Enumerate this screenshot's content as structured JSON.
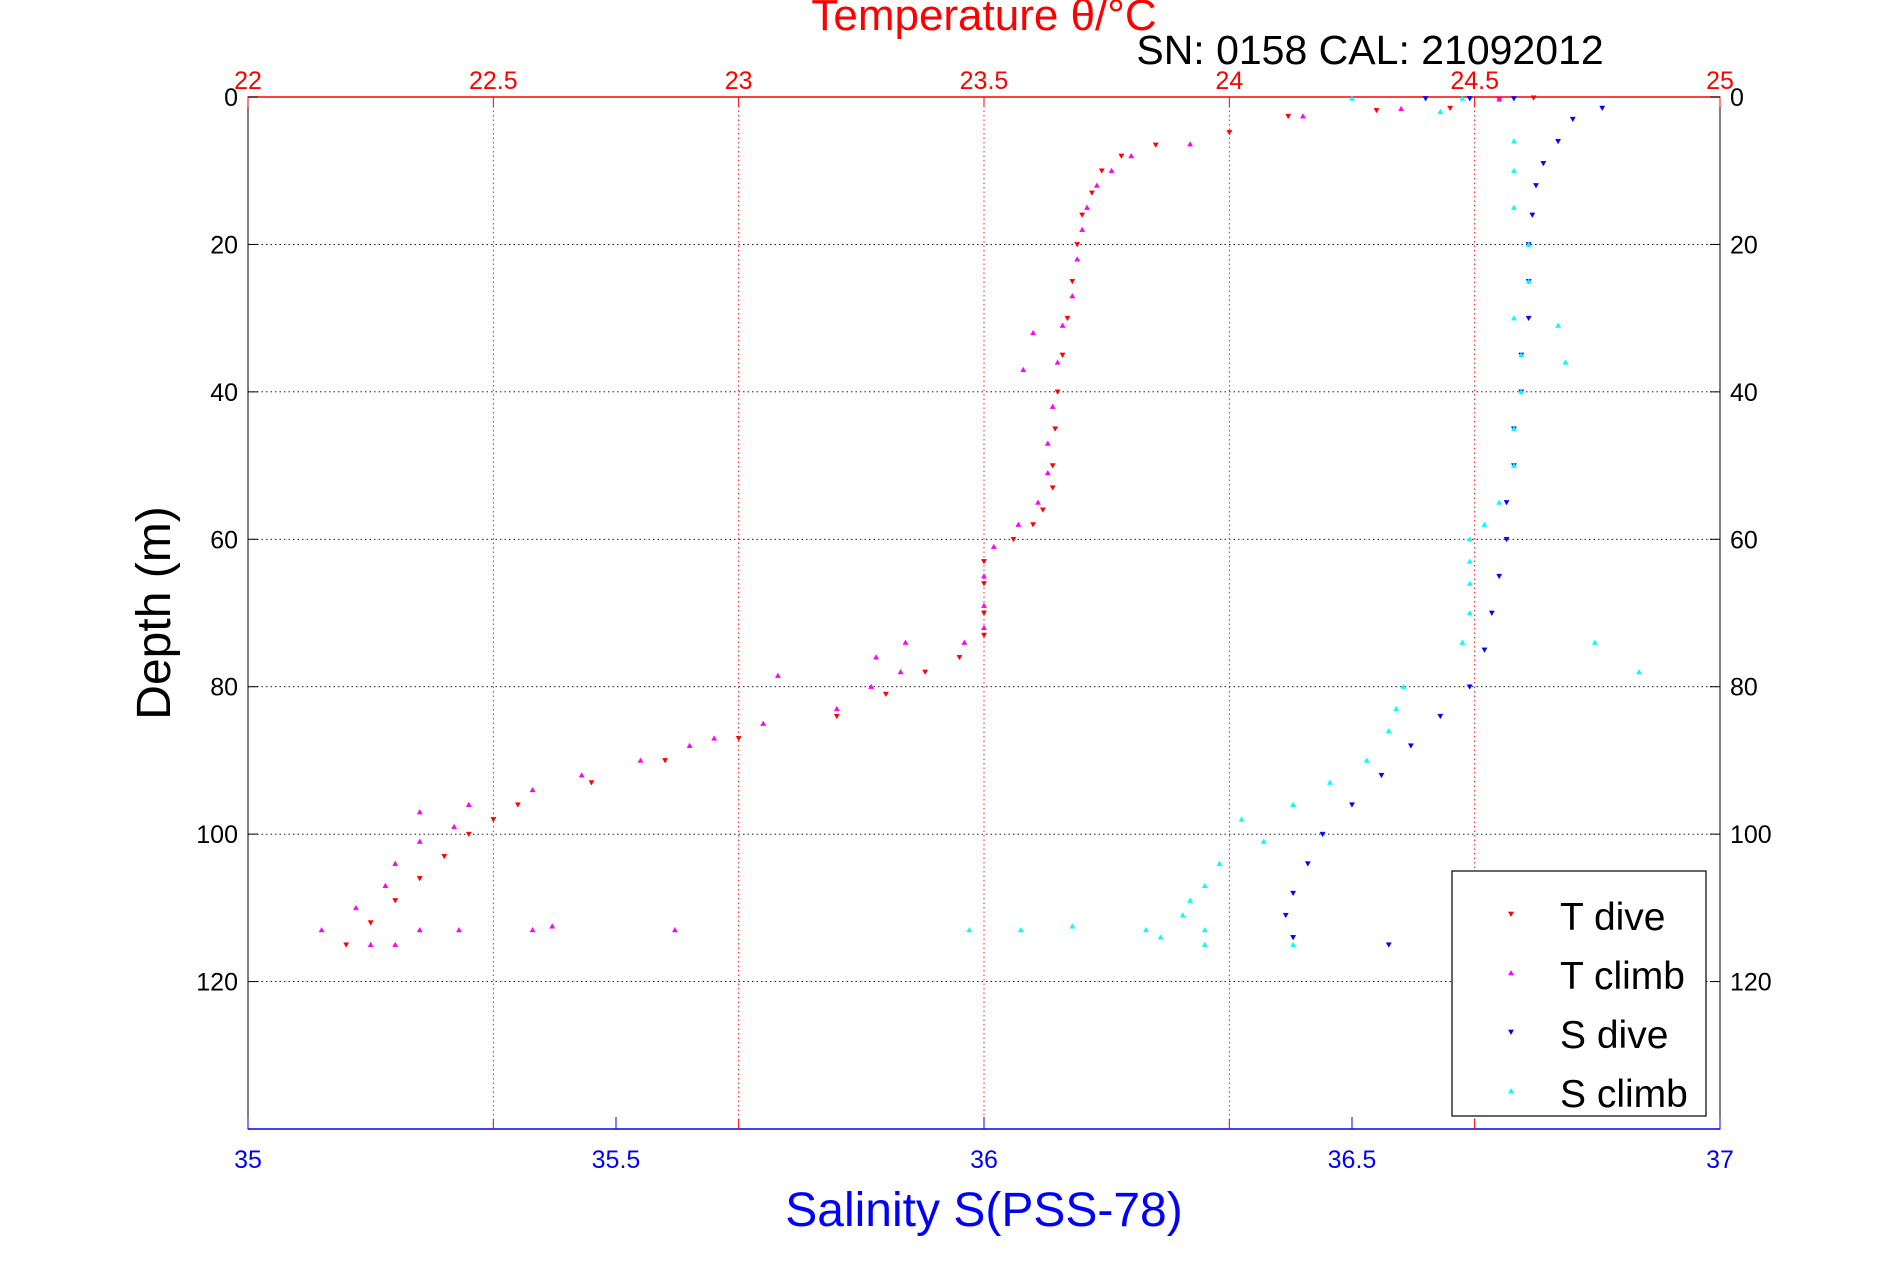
{
  "chart_data": {
    "type": "scatter",
    "title": "Temperature θ/°C",
    "subtitle": "SN: 0158  CAL: 21092012",
    "xlabel_top": "Temperature θ/°C",
    "xlabel_bottom": "Salinity S(PSS-78)",
    "ylabel": "Depth (m)",
    "y_reversed": true,
    "ylim": [
      0,
      140
    ],
    "yticks": [
      0,
      20,
      40,
      60,
      80,
      100,
      120
    ],
    "temperature_axis": {
      "xlim": [
        22,
        25
      ],
      "ticks": [
        "22",
        "22.5",
        "23",
        "23.5",
        "24",
        "24.5",
        "25"
      ],
      "color": "#ff0000",
      "grid": "dotted"
    },
    "salinity_axis": {
      "xlim": [
        35,
        37
      ],
      "ticks": [
        "35",
        "35.5",
        "36",
        "36.5",
        "37"
      ],
      "color": "#0000ff"
    },
    "y_grid": "dotted",
    "legend_placement": "bottom-right",
    "legend_entries": [
      "T dive",
      "T climb",
      "S dive",
      "S climb"
    ],
    "series": [
      {
        "name": "T dive",
        "axis": "temperature",
        "color": "#ff0000",
        "marker": "triangle-down",
        "points": [
          [
            24.62,
            0.1
          ],
          [
            24.55,
            0.3
          ],
          [
            24.45,
            1.5
          ],
          [
            24.3,
            1.8
          ],
          [
            24.12,
            2.6
          ],
          [
            24.0,
            4.8
          ],
          [
            23.85,
            6.5
          ],
          [
            23.78,
            8
          ],
          [
            23.74,
            10
          ],
          [
            23.72,
            13
          ],
          [
            23.7,
            16
          ],
          [
            23.69,
            20
          ],
          [
            23.68,
            25
          ],
          [
            23.67,
            30
          ],
          [
            23.66,
            35
          ],
          [
            23.65,
            40
          ],
          [
            23.645,
            45
          ],
          [
            23.64,
            50
          ],
          [
            23.64,
            53
          ],
          [
            23.62,
            56
          ],
          [
            23.6,
            58
          ],
          [
            23.56,
            60
          ],
          [
            23.5,
            63
          ],
          [
            23.5,
            66
          ],
          [
            23.5,
            70
          ],
          [
            23.5,
            73
          ],
          [
            23.45,
            76
          ],
          [
            23.38,
            78
          ],
          [
            23.3,
            81
          ],
          [
            23.2,
            84
          ],
          [
            23.0,
            87
          ],
          [
            22.85,
            90
          ],
          [
            22.7,
            93
          ],
          [
            22.55,
            96
          ],
          [
            22.5,
            98
          ],
          [
            22.45,
            100
          ],
          [
            22.4,
            103
          ],
          [
            22.35,
            106
          ],
          [
            22.3,
            109
          ],
          [
            22.25,
            112
          ],
          [
            22.2,
            115
          ]
        ]
      },
      {
        "name": "T climb",
        "axis": "temperature",
        "color": "#ff00ff",
        "marker": "triangle-up",
        "points": [
          [
            24.55,
            0.3
          ],
          [
            24.35,
            1.6
          ],
          [
            24.15,
            2.6
          ],
          [
            23.92,
            6.4
          ],
          [
            23.8,
            8
          ],
          [
            23.76,
            10
          ],
          [
            23.73,
            12
          ],
          [
            23.71,
            15
          ],
          [
            23.7,
            18
          ],
          [
            23.69,
            22
          ],
          [
            23.68,
            27
          ],
          [
            23.66,
            31
          ],
          [
            23.6,
            32
          ],
          [
            23.65,
            36
          ],
          [
            23.58,
            37
          ],
          [
            23.64,
            42
          ],
          [
            23.63,
            47
          ],
          [
            23.63,
            51
          ],
          [
            23.61,
            55
          ],
          [
            23.57,
            58
          ],
          [
            23.52,
            61
          ],
          [
            23.5,
            65
          ],
          [
            23.5,
            69
          ],
          [
            23.5,
            72
          ],
          [
            23.46,
            74
          ],
          [
            23.34,
            74
          ],
          [
            23.28,
            76
          ],
          [
            23.33,
            78
          ],
          [
            23.08,
            78.5
          ],
          [
            23.27,
            80
          ],
          [
            23.2,
            83
          ],
          [
            23.05,
            85
          ],
          [
            22.95,
            87
          ],
          [
            22.9,
            88
          ],
          [
            22.8,
            90
          ],
          [
            22.68,
            92
          ],
          [
            22.58,
            94
          ],
          [
            22.45,
            96
          ],
          [
            22.35,
            97
          ],
          [
            22.42,
            99
          ],
          [
            22.35,
            101
          ],
          [
            22.3,
            104
          ],
          [
            22.28,
            107
          ],
          [
            22.22,
            110
          ],
          [
            22.15,
            113
          ],
          [
            22.35,
            113
          ],
          [
            22.43,
            113
          ],
          [
            22.58,
            113
          ],
          [
            22.87,
            113
          ],
          [
            22.62,
            112.5
          ],
          [
            22.3,
            115
          ],
          [
            22.25,
            115
          ]
        ]
      },
      {
        "name": "S dive",
        "axis": "salinity",
        "color": "#0000ff",
        "marker": "triangle-down",
        "points": [
          [
            36.72,
            0.2
          ],
          [
            36.6,
            0.2
          ],
          [
            36.66,
            0.2
          ],
          [
            36.84,
            1.5
          ],
          [
            36.8,
            3
          ],
          [
            36.78,
            6
          ],
          [
            36.76,
            9
          ],
          [
            36.75,
            12
          ],
          [
            36.745,
            16
          ],
          [
            36.74,
            20
          ],
          [
            36.74,
            25
          ],
          [
            36.74,
            30
          ],
          [
            36.73,
            35
          ],
          [
            36.73,
            40
          ],
          [
            36.72,
            45
          ],
          [
            36.72,
            50
          ],
          [
            36.71,
            55
          ],
          [
            36.71,
            60
          ],
          [
            36.7,
            65
          ],
          [
            36.69,
            70
          ],
          [
            36.68,
            75
          ],
          [
            36.66,
            80
          ],
          [
            36.62,
            84
          ],
          [
            36.58,
            88
          ],
          [
            36.54,
            92
          ],
          [
            36.5,
            96
          ],
          [
            36.46,
            100
          ],
          [
            36.44,
            104
          ],
          [
            36.42,
            108
          ],
          [
            36.41,
            111
          ],
          [
            36.42,
            114
          ],
          [
            36.55,
            115
          ]
        ]
      },
      {
        "name": "S climb",
        "axis": "salinity",
        "color": "#00ffff",
        "marker": "triangle-up",
        "points": [
          [
            36.5,
            0.2
          ],
          [
            36.65,
            0.2
          ],
          [
            36.62,
            2
          ],
          [
            36.72,
            6
          ],
          [
            36.72,
            10
          ],
          [
            36.72,
            15
          ],
          [
            36.74,
            20
          ],
          [
            36.74,
            25
          ],
          [
            36.72,
            30
          ],
          [
            36.78,
            31
          ],
          [
            36.73,
            35
          ],
          [
            36.79,
            36
          ],
          [
            36.73,
            40
          ],
          [
            36.72,
            45
          ],
          [
            36.72,
            50
          ],
          [
            36.7,
            55
          ],
          [
            36.68,
            58
          ],
          [
            36.66,
            60
          ],
          [
            36.66,
            63
          ],
          [
            36.66,
            66
          ],
          [
            36.66,
            70
          ],
          [
            36.65,
            74
          ],
          [
            36.83,
            74
          ],
          [
            36.89,
            78
          ],
          [
            36.57,
            80
          ],
          [
            36.56,
            83
          ],
          [
            36.55,
            86
          ],
          [
            36.52,
            90
          ],
          [
            36.47,
            93
          ],
          [
            36.42,
            96
          ],
          [
            36.35,
            98
          ],
          [
            36.38,
            101
          ],
          [
            36.32,
            104
          ],
          [
            36.3,
            107
          ],
          [
            36.28,
            109
          ],
          [
            36.27,
            111
          ],
          [
            36.3,
            113
          ],
          [
            36.24,
            114
          ],
          [
            35.98,
            113
          ],
          [
            36.05,
            113
          ],
          [
            36.12,
            112.5
          ],
          [
            36.22,
            113
          ],
          [
            36.3,
            115
          ],
          [
            36.42,
            115
          ]
        ]
      }
    ]
  }
}
